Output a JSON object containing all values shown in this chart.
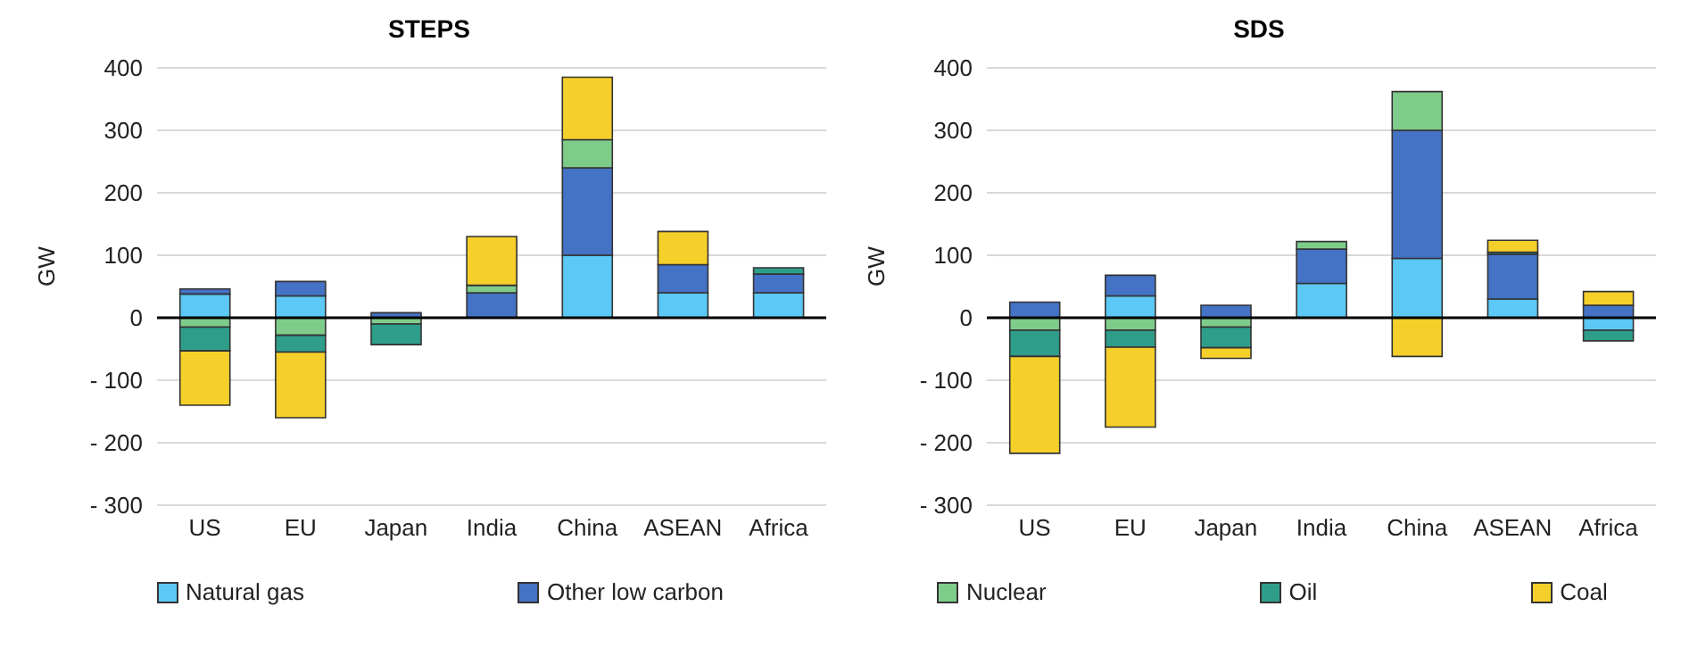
{
  "chart_data": [
    {
      "type": "bar",
      "title": "STEPS",
      "ylabel": "GW",
      "stacked": true,
      "categories": [
        "US",
        "EU",
        "Japan",
        "India",
        "China",
        "ASEAN",
        "Africa"
      ],
      "series": [
        {
          "name": "Natural gas",
          "color": "#5bc8f5",
          "values": [
            38,
            35,
            0,
            0,
            100,
            40,
            40
          ]
        },
        {
          "name": "Other low carbon",
          "color": "#4472c4",
          "values": [
            8,
            23,
            8,
            40,
            140,
            45,
            30
          ]
        },
        {
          "name": "Nuclear",
          "color": "#7fcc8a",
          "values": [
            -15,
            -28,
            -10,
            12,
            45,
            0,
            0
          ]
        },
        {
          "name": "Oil",
          "color": "#2e9e8a",
          "values": [
            -38,
            -27,
            -33,
            0,
            0,
            null,
            10
          ]
        },
        {
          "name": "Coal",
          "color": "#f5cf2a",
          "values": [
            -87,
            -105,
            0,
            78,
            100,
            53,
            0
          ]
        }
      ],
      "ylim": [
        -300,
        400
      ],
      "yticks": [
        {
          "value": -300,
          "label": "- 300"
        },
        {
          "value": -200,
          "label": "- 200"
        },
        {
          "value": -100,
          "label": "- 100"
        },
        0,
        100,
        200,
        300,
        400
      ],
      "grid": "y",
      "legend": "bottom",
      "ref_lines": [
        {
          "axis": "y",
          "value": 0,
          "color": "#000000"
        }
      ]
    },
    {
      "type": "bar",
      "title": "SDS",
      "ylabel": "GW",
      "stacked": true,
      "categories": [
        "US",
        "EU",
        "Japan",
        "India",
        "China",
        "ASEAN",
        "Africa"
      ],
      "series": [
        {
          "color": "#5bc8f5",
          "values": [
            0,
            35,
            0,
            55,
            95,
            30,
            -20
          ]
        },
        {
          "color": "#4472c4",
          "values": [
            25,
            33,
            20,
            55,
            205,
            72,
            20
          ]
        },
        {
          "color": "#7fcc8a",
          "values": [
            -20,
            -20,
            -15,
            12,
            62,
            0,
            0
          ]
        },
        {
          "color": "#2e9e8a",
          "values": [
            -42,
            -27,
            -33,
            null,
            0,
            3,
            -17
          ]
        },
        {
          "color": "#f5cf2a",
          "values": [
            -155,
            -128,
            -17,
            0,
            -62,
            19,
            22
          ]
        }
      ],
      "ylim": [
        -300,
        400
      ],
      "yticks": [
        {
          "value": -300,
          "label": "- 300"
        },
        {
          "value": -200,
          "label": "- 200"
        },
        {
          "value": -100,
          "label": "- 100"
        },
        0,
        100,
        200,
        300,
        400
      ],
      "grid": "y",
      "ref_lines": [
        {
          "axis": "y",
          "value": 0,
          "color": "#000000"
        }
      ]
    }
  ]
}
